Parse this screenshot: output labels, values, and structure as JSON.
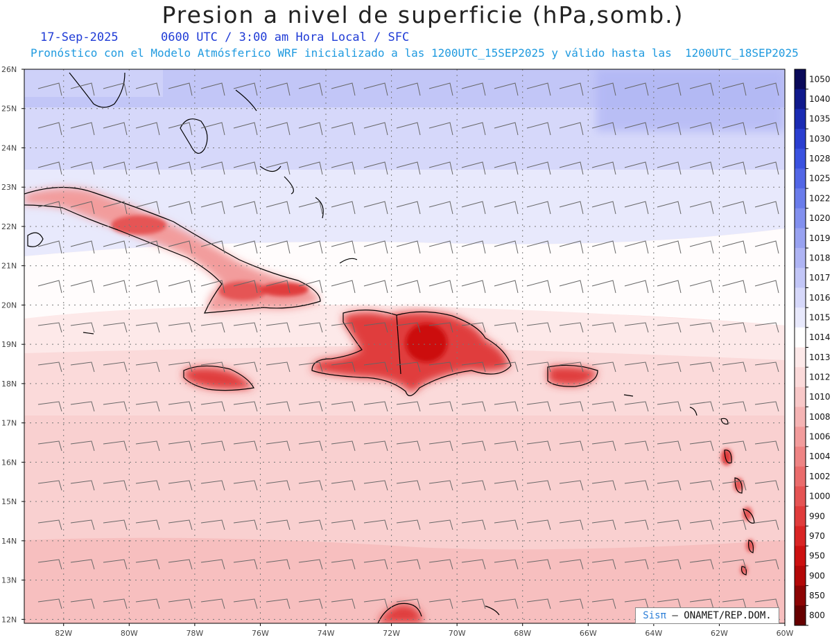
{
  "header": {
    "title": "Presion a nivel de superficie (hPa,somb.)",
    "date": "17-Sep-2025",
    "valid_time": "0600 UTC / 3:00 am Hora Local / SFC",
    "forecast_info": "Pronóstico con el Modelo Atmósferico WRF inicializado a las 1200UTC_15SEP2025 y válido hasta las  1200UTC_18SEP2025"
  },
  "map": {
    "lon_range": [
      -83.2,
      -60
    ],
    "lat_range": [
      11.9,
      26
    ],
    "lat_ticks": [
      "26N",
      "25N",
      "24N",
      "23N",
      "22N",
      "21N",
      "20N",
      "19N",
      "18N",
      "17N",
      "16N",
      "15N",
      "14N",
      "13N",
      "12N"
    ],
    "lon_ticks": [
      "82W",
      "80W",
      "78W",
      "76W",
      "74W",
      "72W",
      "70W",
      "68W",
      "66W",
      "64W",
      "62W",
      "60W"
    ],
    "grid": "dotted",
    "wind_barbs": "overlay, north-easterly trades"
  },
  "colorbar": {
    "levels": [
      "1050",
      "1040",
      "1035",
      "1030",
      "1028",
      "1025",
      "1022",
      "1020",
      "1019",
      "1018",
      "1017",
      "1016",
      "1015",
      "1014",
      "1013",
      "1012",
      "1010",
      "1008",
      "1006",
      "1004",
      "1002",
      "1000",
      "990",
      "970",
      "950",
      "900",
      "850",
      "800"
    ],
    "colors": [
      "#0a0a5a",
      "#101a8c",
      "#1a2bb3",
      "#2a3ed0",
      "#3a52e0",
      "#5266e6",
      "#6a7ceb",
      "#8290ef",
      "#98a2f1",
      "#aeb4f4",
      "#c2c6f7",
      "#d6d8fa",
      "#e8e9fc",
      "#ffffff",
      "#fde9e9",
      "#fbdada",
      "#f8c8c8",
      "#f5b4b4",
      "#f29c9c",
      "#ee8484",
      "#ea6c6c",
      "#e55454",
      "#e03c3c",
      "#d92424",
      "#cc1010",
      "#b30808",
      "#8c0404",
      "#660000"
    ]
  },
  "credit": {
    "brand": "Sisπ",
    "text": "– ONAMET/REP.DOM."
  }
}
